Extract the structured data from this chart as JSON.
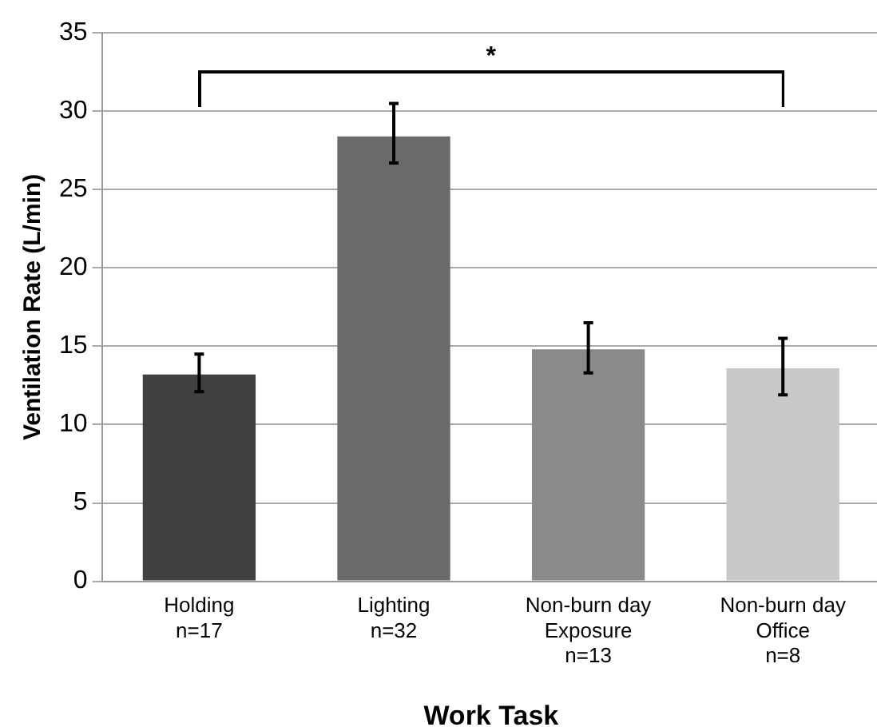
{
  "chart_data": {
    "type": "bar",
    "xlabel": "Work Task",
    "ylabel": "Ventilation Rate (L/min)",
    "categories": [
      "Holding\nn=17",
      "Lighting\nn=32",
      "Non-burn day\nExposure\nn=13",
      "Non-burn day\nOffice\nn=8"
    ],
    "values": [
      13.2,
      28.4,
      14.8,
      13.6
    ],
    "colors": [
      "#404040",
      "#6a6a6a",
      "#8a8a8a",
      "#c8c8c8"
    ],
    "errors": [
      [
        12.1,
        14.5
      ],
      [
        26.7,
        30.5
      ],
      [
        13.3,
        16.5
      ],
      [
        11.9,
        15.5
      ]
    ],
    "ylim": [
      0,
      35
    ],
    "yticks": [
      0,
      5,
      10,
      15,
      20,
      25,
      30,
      35
    ],
    "grid": "y",
    "legend": false,
    "annotations": [
      "*"
    ]
  }
}
